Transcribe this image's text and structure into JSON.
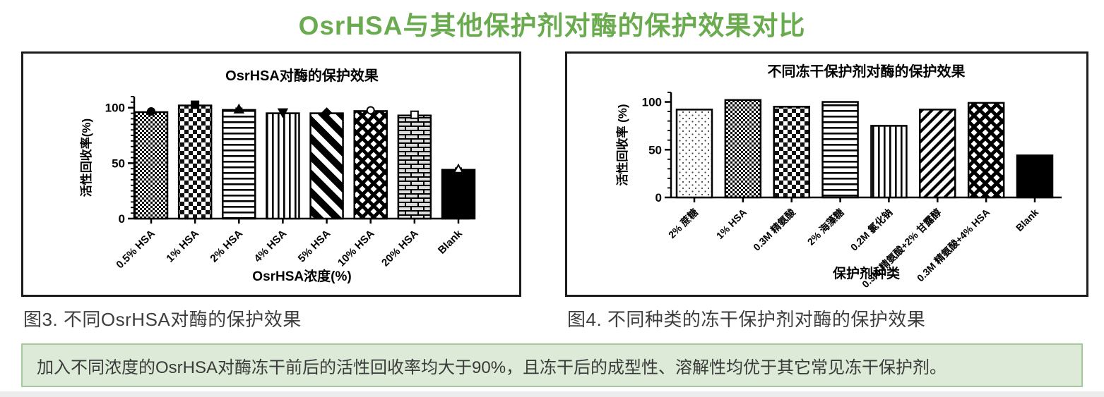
{
  "page_title": "OsrHSA与其他保护剂对酶的保护效果对比",
  "captions": {
    "left": "图3. 不同OsrHSA对酶的保护效果",
    "right": "图4. 不同种类的冻干保护剂对酶的保护效果"
  },
  "summary_note": "加入不同浓度的OsrHSA对酶冻干前后的活性回收率均大于90%，且冻干后的成型性、溶解性均优于其它常见冻干保护剂。",
  "colors": {
    "title_green": "#6aab4f",
    "note_bg": "#dcead7",
    "note_border": "#a4ca9c",
    "ink": "#000000"
  },
  "chart_data": [
    {
      "type": "bar",
      "title": "OsrHSA对酶的保护效果",
      "xlabel": "OsrHSA浓度(%)",
      "ylabel": "活性回收率(%)",
      "ylim": [
        0,
        110
      ],
      "yticks": [
        0,
        50,
        100
      ],
      "yminor": 5,
      "grid": false,
      "legend_position": "none",
      "categories": [
        "0.5% HSA",
        "1% HSA",
        "2% HSA",
        "4% HSA",
        "5% HSA",
        "10% HSA",
        "20% HSA",
        "Blank"
      ],
      "values": [
        96,
        102,
        98,
        95,
        95,
        97,
        93,
        44
      ],
      "errors": [
        1.5,
        2,
        1.5,
        1.5,
        1,
        1.5,
        2,
        1.5
      ],
      "patterns": [
        "fine-check",
        "check",
        "hlines",
        "vlines",
        "diag-down",
        "diamond",
        "brick",
        "solid"
      ],
      "markers": [
        "circle-filled",
        "square-filled",
        "triangle-filled",
        "triangle-down-filled",
        "diamond-filled",
        "circle-open",
        "square-open",
        "triangle-open"
      ]
    },
    {
      "type": "bar",
      "title": "不同冻干保护剂对酶的保护效果",
      "xlabel": "保护剂种类",
      "ylabel": "活性回收率 (%)",
      "ylim": [
        0,
        110
      ],
      "yticks": [
        0,
        50,
        100
      ],
      "yminor": 10,
      "grid": false,
      "legend_position": "none",
      "categories": [
        "2% 蔗糖",
        "1% HSA",
        "0.3M 精氨酸",
        "2% 海藻糖",
        "0.2M 氯化钠",
        "0.3M 精氨酸+2% 甘露醇",
        "0.3M 精氨酸+4% HSA",
        "Blank"
      ],
      "values": [
        92,
        102,
        95,
        100,
        75,
        92,
        99,
        44
      ],
      "errors": null,
      "patterns": [
        "dots",
        "fine-check",
        "check",
        "hlines",
        "vlines",
        "diag-up",
        "diamond",
        "solid"
      ],
      "markers": null
    }
  ]
}
